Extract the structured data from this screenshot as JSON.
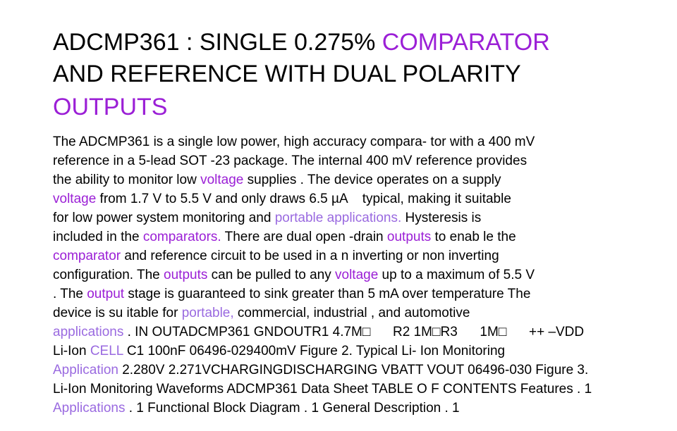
{
  "colors": {
    "title_highlight": "#9b1fd6",
    "body_highlight_purple": "#9b1fd6",
    "body_highlight_lavender": "#9a6ae0",
    "text": "#000000",
    "background": "#ffffff"
  },
  "title": {
    "lines": [
      [
        {
          "text": "ADCMP361 : SINGLE 0.275% ",
          "hl": ""
        },
        {
          "text": "COMPARATOR",
          "hl": "p"
        }
      ],
      [
        {
          "text": "AND REFERENCE WITH DUAL POLARITY",
          "hl": ""
        }
      ],
      [
        {
          "text": "OUTPUTS",
          "hl": "p"
        }
      ]
    ]
  },
  "body": {
    "lines": [
      [
        {
          "text": "The ADCMP361 is a single low power, high accuracy compara- tor with a 400 mV",
          "hl": ""
        }
      ],
      [
        {
          "text": "reference in a 5-lead SOT -23 package. The internal 400 mV reference provides",
          "hl": ""
        }
      ],
      [
        {
          "text": "the ability to monitor low ",
          "hl": ""
        },
        {
          "text": "voltage",
          "hl": "p"
        },
        {
          "text": " supplies . The device operates on a supply",
          "hl": ""
        }
      ],
      [
        {
          "text": "voltage",
          "hl": "p"
        },
        {
          "text": " from 1.7 V to 5.5 V and only draws 6.5 µA    typical, making it suitable",
          "hl": ""
        }
      ],
      [
        {
          "text": "for low power system monitoring and ",
          "hl": ""
        },
        {
          "text": "portable applications.",
          "hl": "l"
        },
        {
          "text": " Hysteresis is",
          "hl": ""
        }
      ],
      [
        {
          "text": "included in the ",
          "hl": ""
        },
        {
          "text": "comparators.",
          "hl": "p"
        },
        {
          "text": " There are dual open -drain ",
          "hl": ""
        },
        {
          "text": "outputs",
          "hl": "p"
        },
        {
          "text": " to enab le the",
          "hl": ""
        }
      ],
      [
        {
          "text": "comparator",
          "hl": "p"
        },
        {
          "text": " and reference circuit to be used in a n inverting or non inverting",
          "hl": ""
        }
      ],
      [
        {
          "text": "configuration. The ",
          "hl": ""
        },
        {
          "text": "outputs",
          "hl": "p"
        },
        {
          "text": " can be pulled to any ",
          "hl": ""
        },
        {
          "text": "voltage",
          "hl": "p"
        },
        {
          "text": " up to a maximum of 5.5 V",
          "hl": ""
        }
      ],
      [
        {
          "text": ". The ",
          "hl": ""
        },
        {
          "text": "output",
          "hl": "p"
        },
        {
          "text": " stage is guaranteed to sink greater than 5 mA over temperature The",
          "hl": ""
        }
      ],
      [
        {
          "text": "device is su itable for ",
          "hl": ""
        },
        {
          "text": "portable,",
          "hl": "l"
        },
        {
          "text": " commercial, industrial , and automotive",
          "hl": ""
        }
      ],
      [
        {
          "text": "applications",
          "hl": "l"
        },
        {
          "text": " . IN OUTADCMP361 GNDOUTR1 4.7M□      R2 1M□R3      1M□      ++ –VDD",
          "hl": ""
        }
      ],
      [
        {
          "text": "Li-Ion ",
          "hl": ""
        },
        {
          "text": "CELL",
          "hl": "l"
        },
        {
          "text": " C1 100nF 06496-029400mV Figure 2. Typical Li- Ion Monitoring",
          "hl": ""
        }
      ],
      [
        {
          "text": "Application",
          "hl": "l"
        },
        {
          "text": " 2.280V 2.271VCHARGINGDISCHARGING VBATT VOUT 06496-030 Figure 3.",
          "hl": ""
        }
      ],
      [
        {
          "text": "Li-Ion Monitoring Waveforms ADCMP361 Data Sheet TABLE O F CONTENTS Features . 1",
          "hl": ""
        }
      ],
      [
        {
          "text": "Applications",
          "hl": "l"
        },
        {
          "text": " . 1 Functional Block Diagram . 1 General Description . 1",
          "hl": ""
        }
      ]
    ]
  }
}
